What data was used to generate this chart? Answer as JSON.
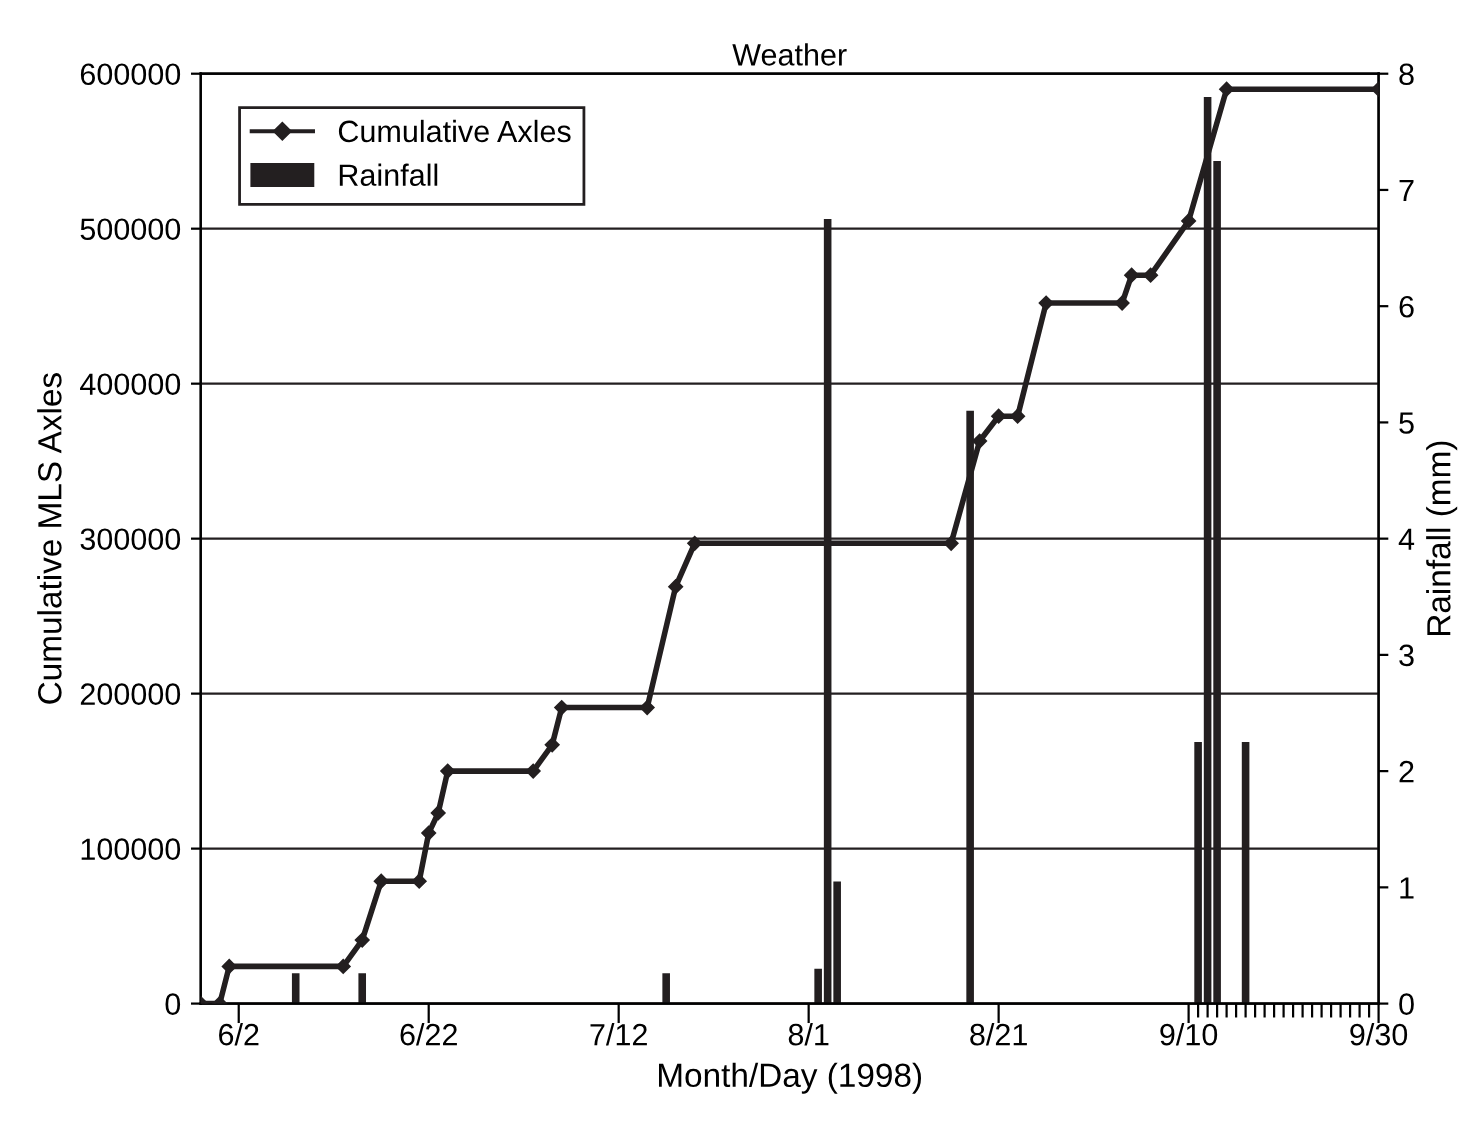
{
  "chart_data": {
    "type": "line",
    "title": "Weather",
    "xlabel": "Month/Day (1998)",
    "ylabel": "Cumulative MLS Axles",
    "y2label": "Rainfall (mm)",
    "xlim": [
      "1998-05-29",
      "1998-09-30"
    ],
    "xticks": [
      {
        "value": "1998-06-02",
        "label": "6/2"
      },
      {
        "value": "1998-06-22",
        "label": "6/22"
      },
      {
        "value": "1998-07-12",
        "label": "7/12"
      },
      {
        "value": "1998-08-01",
        "label": "8/1"
      },
      {
        "value": "1998-08-21",
        "label": "8/21"
      },
      {
        "value": "1998-09-10",
        "label": "9/10"
      },
      {
        "value": "1998-09-30",
        "label": "9/30"
      },
      {
        "value": "1998-09-11",
        "label": null
      },
      {
        "value": "1998-09-12",
        "label": null
      },
      {
        "value": "1998-09-13",
        "label": null
      },
      {
        "value": "1998-09-14",
        "label": null
      },
      {
        "value": "1998-09-15",
        "label": null
      },
      {
        "value": "1998-09-16",
        "label": null
      },
      {
        "value": "1998-09-17",
        "label": null
      },
      {
        "value": "1998-09-18",
        "label": null
      },
      {
        "value": "1998-09-19",
        "label": null
      },
      {
        "value": "1998-09-20",
        "label": null
      },
      {
        "value": "1998-09-21",
        "label": null
      },
      {
        "value": "1998-09-22",
        "label": null
      },
      {
        "value": "1998-09-23",
        "label": null
      },
      {
        "value": "1998-09-24",
        "label": null
      },
      {
        "value": "1998-09-25",
        "label": null
      },
      {
        "value": "1998-09-26",
        "label": null
      },
      {
        "value": "1998-09-27",
        "label": null
      },
      {
        "value": "1998-09-28",
        "label": null
      },
      {
        "value": "1998-09-29",
        "label": null
      }
    ],
    "ylim": [
      0,
      600000
    ],
    "yticks": [
      0,
      100000,
      200000,
      300000,
      400000,
      500000,
      600000
    ],
    "y2lim": [
      0,
      8
    ],
    "y2ticks": [
      0,
      1,
      2,
      3,
      4,
      5,
      6,
      7,
      8
    ],
    "grid": "y",
    "legend": "top left",
    "marker": "diamond",
    "line_style": "solid",
    "series": [
      {
        "name": "Cumulative Axles",
        "color": "#231f20",
        "x": [
          "1998-05-29",
          "1998-05-31",
          "1998-06-01",
          "1998-06-13",
          "1998-06-15",
          "1998-06-17",
          "1998-06-21",
          "1998-06-22",
          "1998-06-23",
          "1998-06-24",
          "1998-07-03",
          "1998-07-05",
          "1998-07-06",
          "1998-07-15",
          "1998-07-18",
          "1998-07-20",
          "1998-08-16",
          "1998-08-19",
          "1998-08-21",
          "1998-08-23",
          "1998-08-26",
          "1998-09-03",
          "1998-09-04",
          "1998-09-06",
          "1998-09-10",
          "1998-09-14",
          "1998-09-30"
        ],
        "values": [
          0,
          0,
          24000,
          24000,
          41000,
          79000,
          79000,
          110000,
          123000,
          150000,
          150000,
          167000,
          191000,
          191000,
          269000,
          297000,
          297000,
          363000,
          379000,
          379000,
          452000,
          452000,
          470000,
          470000,
          505000,
          590000,
          590000
        ]
      },
      {
        "name": "Rainfall",
        "type": "bar",
        "axis": "y2",
        "color": "#231f20",
        "x": [
          "1998-06-08",
          "1998-06-15",
          "1998-07-17",
          "1998-08-02",
          "1998-08-03",
          "1998-08-04",
          "1998-08-18",
          "1998-09-11",
          "1998-09-12",
          "1998-09-13",
          "1998-09-16"
        ],
        "values": [
          0.26,
          0.26,
          0.26,
          0.3,
          6.75,
          1.05,
          5.1,
          2.25,
          7.8,
          7.25,
          2.25
        ]
      }
    ]
  }
}
